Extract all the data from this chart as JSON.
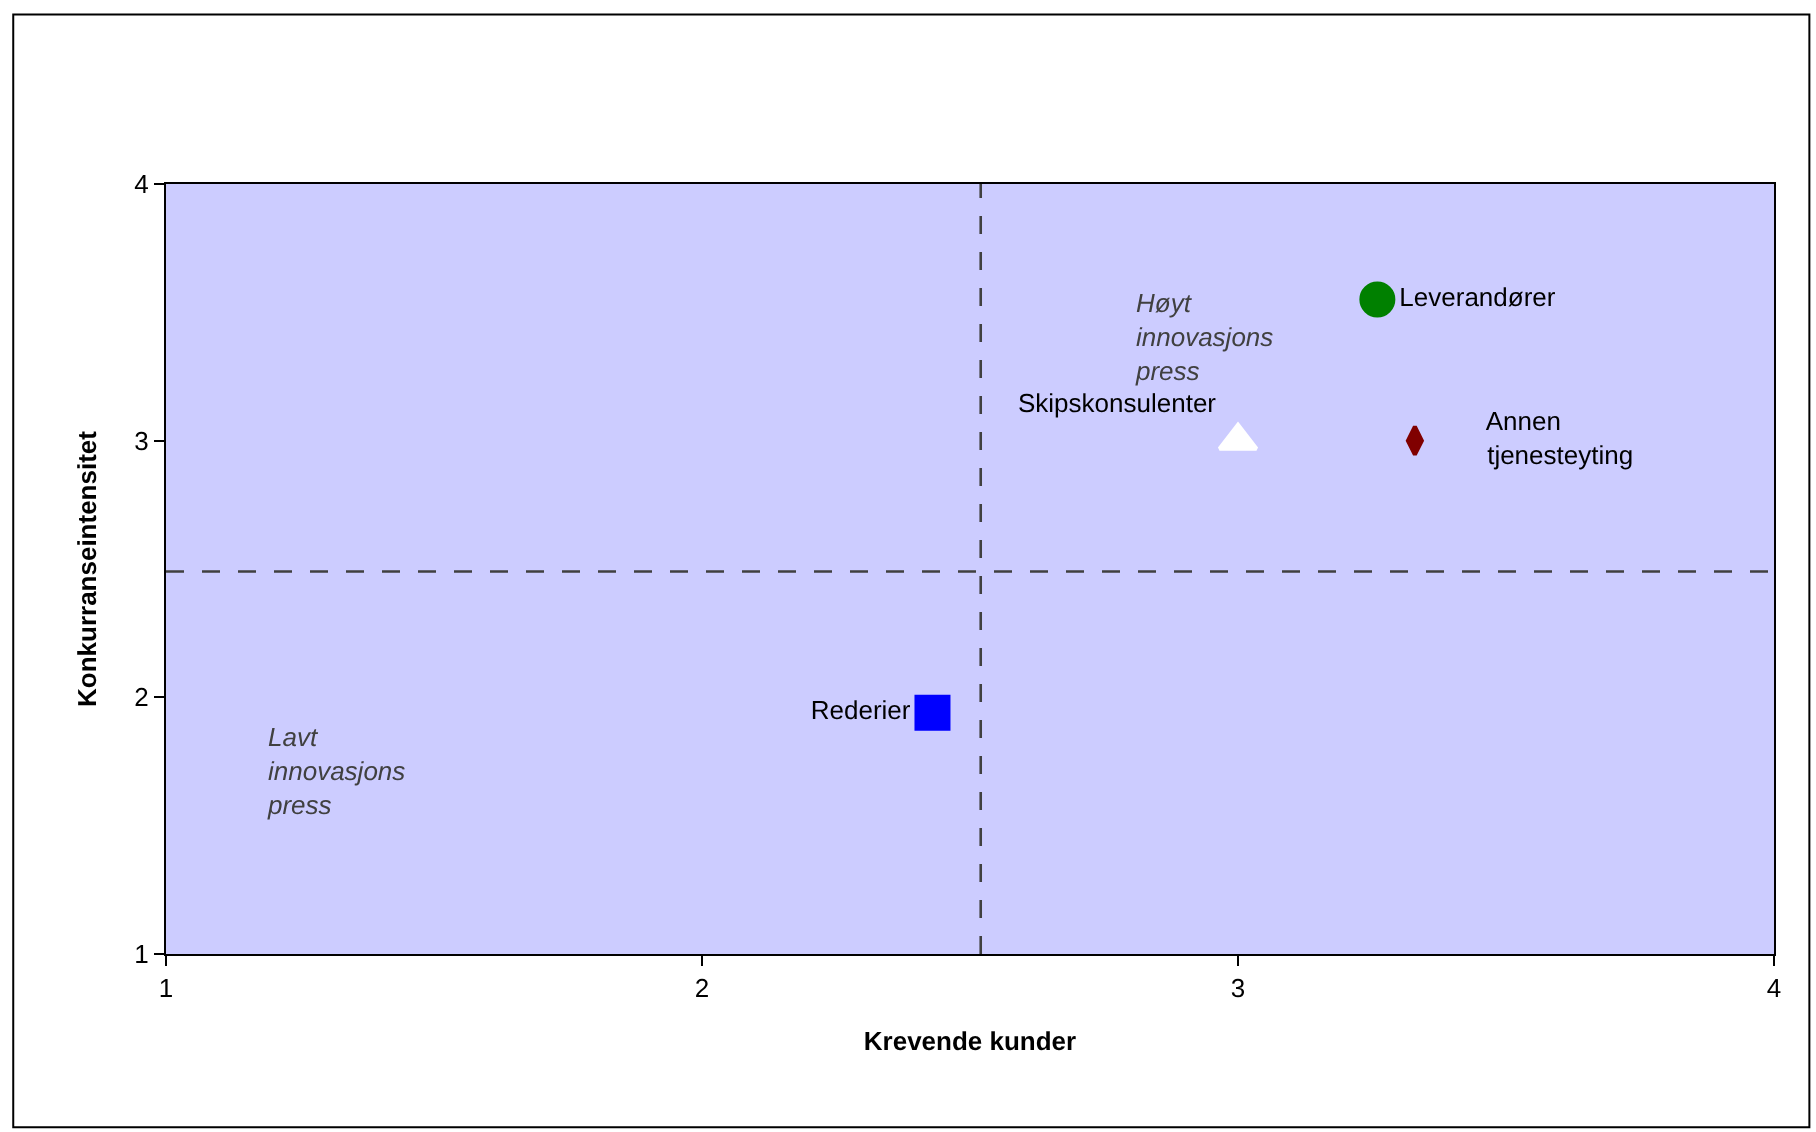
{
  "chart_data": {
    "type": "scatter",
    "xlabel": "Krevende kunder",
    "ylabel": "Konkurranseintensitet",
    "xlim": [
      1,
      4
    ],
    "xticks": [
      1,
      2,
      3,
      4
    ],
    "ylim": [
      1,
      4
    ],
    "yticks": [
      1,
      2,
      3,
      4
    ],
    "grid": false,
    "legend": false,
    "series": [
      {
        "name": "Leverandører",
        "color": "#008000",
        "marker": "circle",
        "x": [
          3.26
        ],
        "values": [
          3.55
        ]
      },
      {
        "name": "Skipskonsulenter",
        "color": "#ffffff",
        "marker": "triangle",
        "x": [
          3.0
        ],
        "values": [
          3.0
        ]
      },
      {
        "name": "Annen\ntjenesteyting",
        "color": "#800000",
        "marker": "diamond",
        "x": [
          3.33
        ],
        "values": [
          3.0
        ]
      },
      {
        "name": "Rederier",
        "color": "#0000ff",
        "marker": "square",
        "x": [
          2.43
        ],
        "values": [
          1.94
        ]
      }
    ],
    "ref_lines": [
      {
        "axis": "x",
        "value": 2.52,
        "label": null,
        "color": "#404040",
        "line_style": "dashed"
      },
      {
        "axis": "y",
        "value": 2.49,
        "label": null,
        "color": "#404040",
        "line_style": "dashed"
      }
    ],
    "annotations": [
      "Høyt\ninnovasjons\npress",
      "Lavt\ninnovasjons\npress"
    ]
  }
}
